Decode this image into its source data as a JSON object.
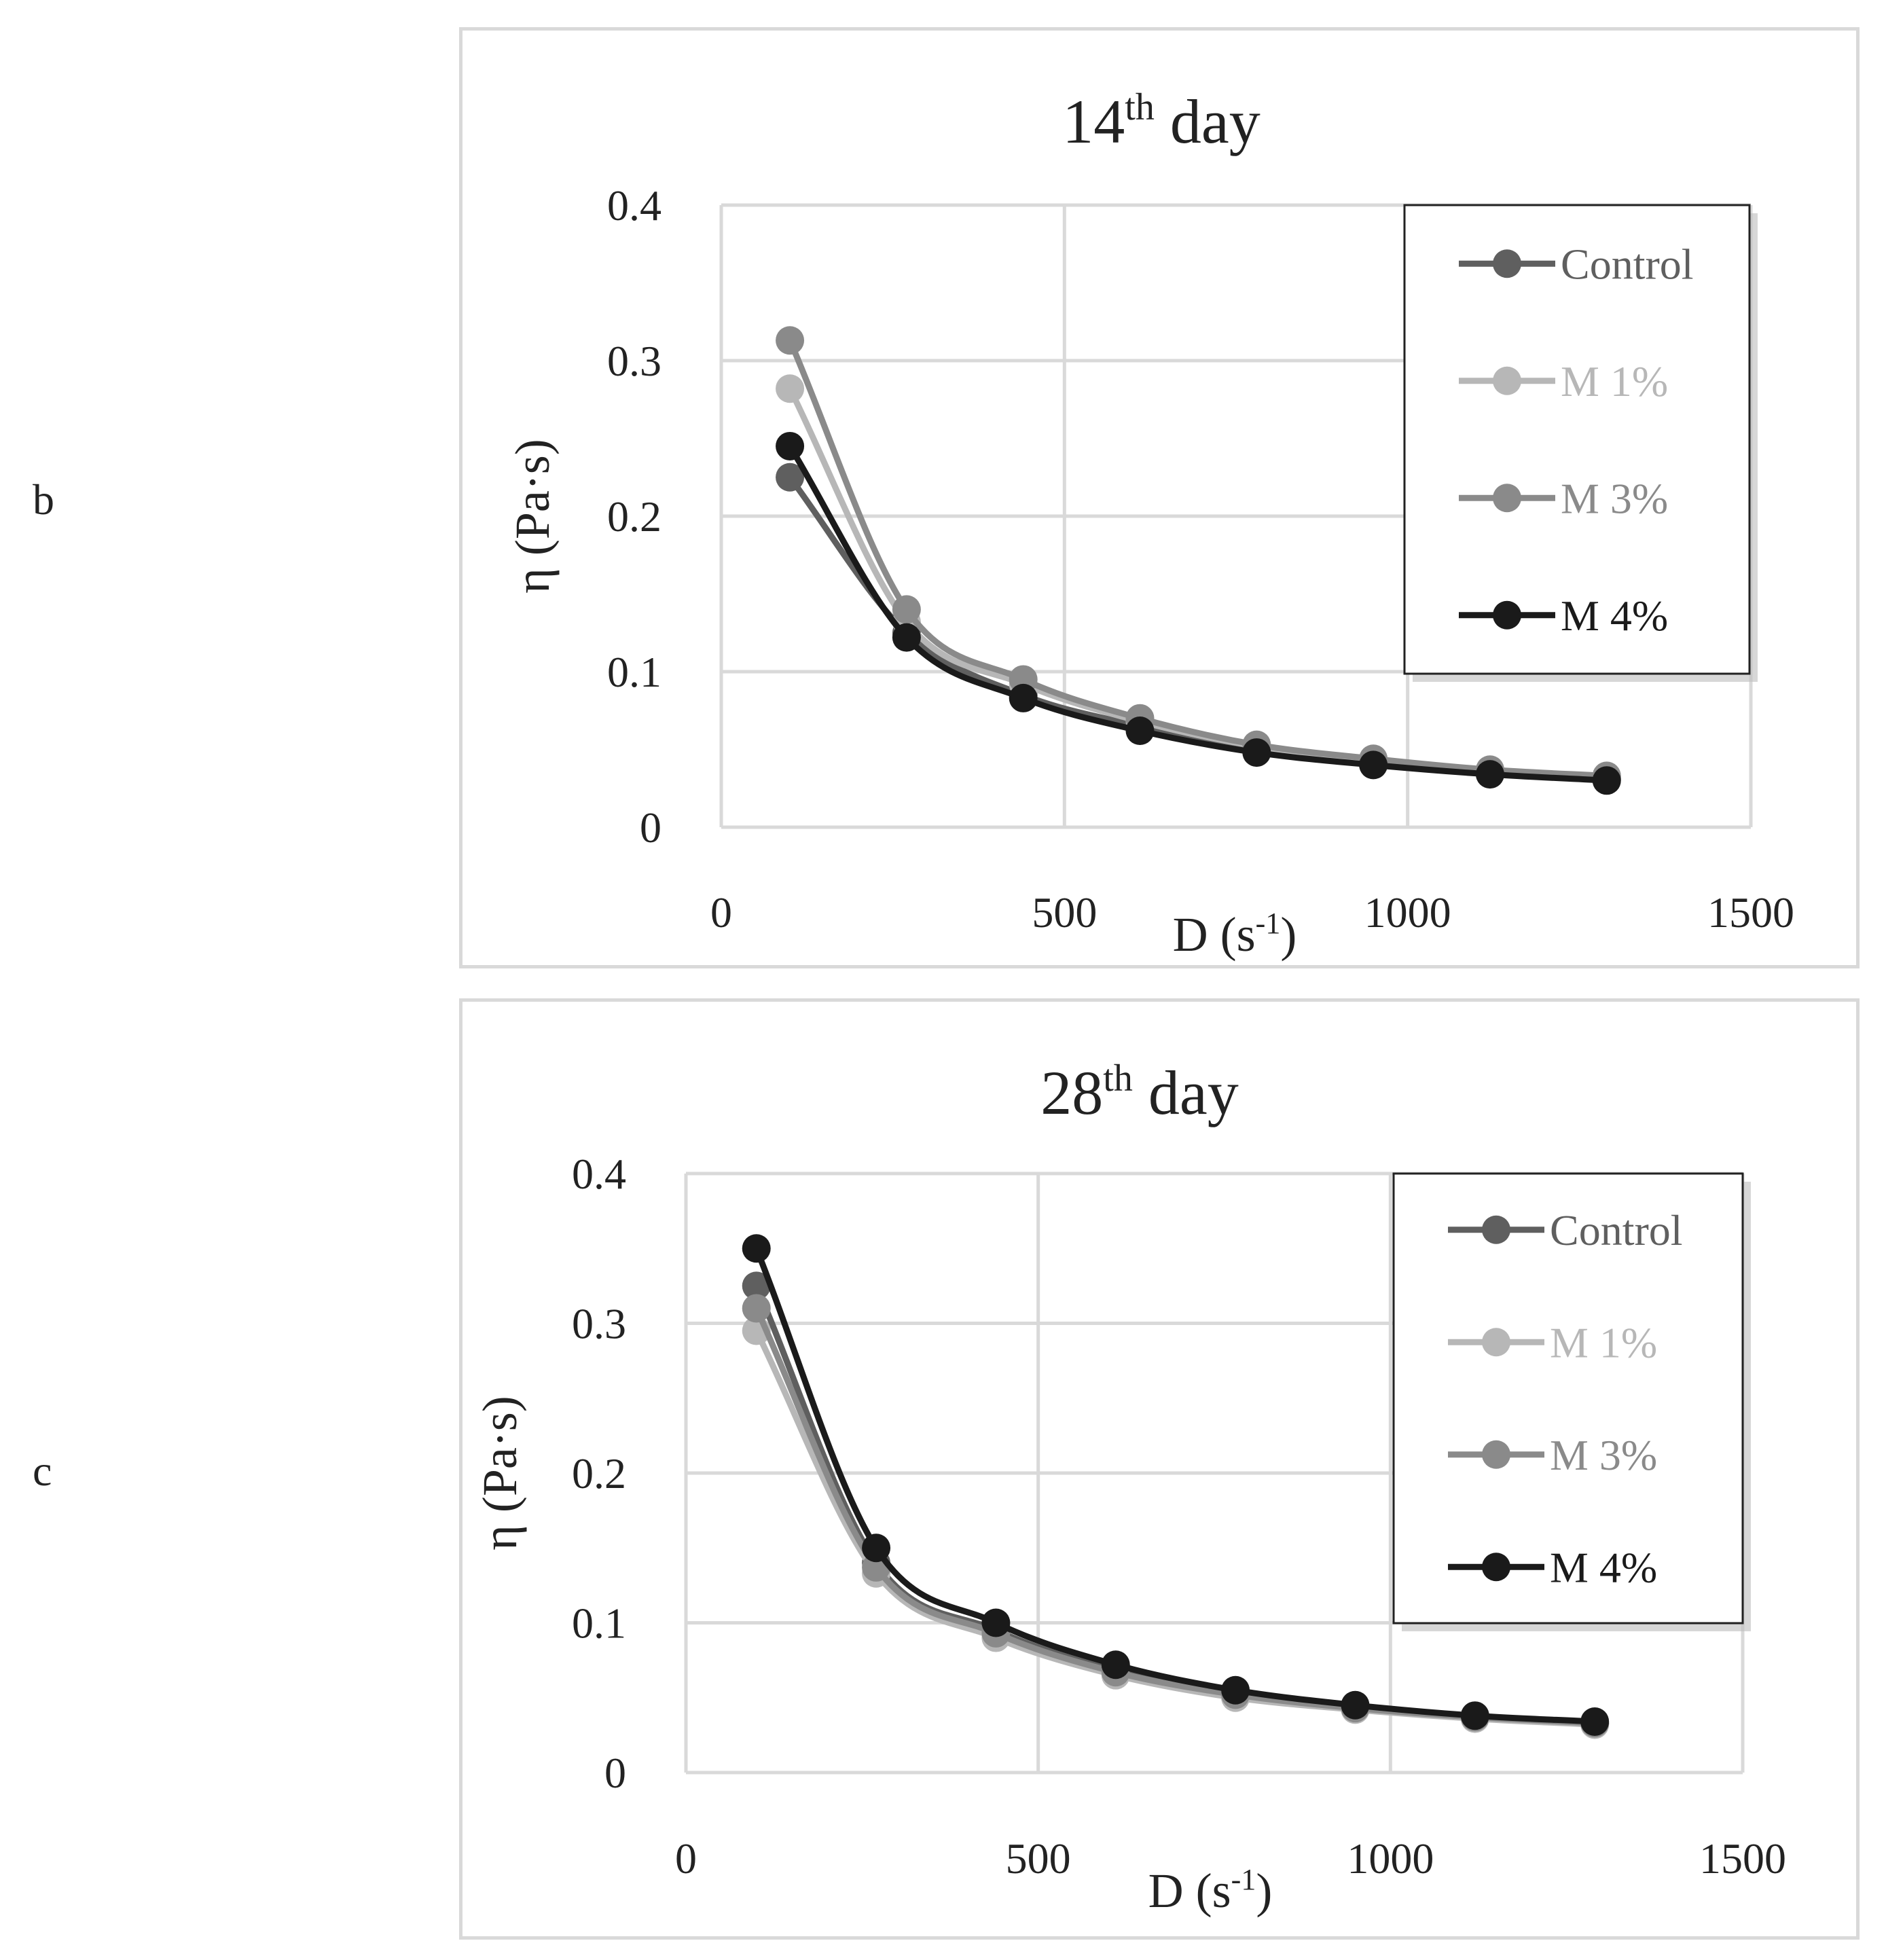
{
  "figure": {
    "panels": [
      {
        "letter": "b"
      },
      {
        "letter": "c"
      }
    ]
  },
  "styles": {
    "series_colors": {
      "Control": "#5f5f5f",
      "M 1%": "#b7b7b7",
      "M 3%": "#8a8a8a",
      "M 4%": "#1a1a1a"
    },
    "grid_color": "#d9d9d9",
    "legend_shadow": "#bdbdbd"
  },
  "chart_data": [
    {
      "type": "line",
      "title": "14th day",
      "title_main": "14",
      "title_sup": "th",
      "title_rest": " day",
      "xlabel": "D (s-1)",
      "xlabel_main": "D (s",
      "xlabel_sup": "-1",
      "xlabel_close": ")",
      "ylabel": "η (Pa·s)",
      "xlim": [
        0,
        1500
      ],
      "ylim": [
        0,
        0.4
      ],
      "xticks": [
        0,
        500,
        1000,
        1500
      ],
      "yticks": [
        0,
        0.1,
        0.2,
        0.3,
        0.4
      ],
      "grid": true,
      "legend_position": "top-right",
      "x": [
        100,
        270,
        440,
        610,
        780,
        950,
        1120,
        1290
      ],
      "series": [
        {
          "name": "Control",
          "values": [
            0.225,
            0.125,
            0.085,
            0.065,
            0.05,
            0.042,
            0.035,
            0.031
          ]
        },
        {
          "name": "M 1%",
          "values": [
            0.282,
            0.132,
            0.092,
            0.068,
            0.052,
            0.043,
            0.036,
            0.032
          ]
        },
        {
          "name": "M 3%",
          "values": [
            0.313,
            0.14,
            0.095,
            0.07,
            0.053,
            0.044,
            0.037,
            0.033
          ]
        },
        {
          "name": "M 4%",
          "values": [
            0.245,
            0.122,
            0.083,
            0.062,
            0.048,
            0.04,
            0.034,
            0.03
          ]
        }
      ]
    },
    {
      "type": "line",
      "title": "28th day",
      "title_main": "28",
      "title_sup": "th",
      "title_rest": " day",
      "xlabel": "D (s-1)",
      "xlabel_main": "D (s",
      "xlabel_sup": "-1",
      "xlabel_close": ")",
      "ylabel": "η (Pa·s)",
      "xlim": [
        0,
        1500
      ],
      "ylim": [
        0,
        0.4
      ],
      "xticks": [
        0,
        500,
        1000,
        1500
      ],
      "yticks": [
        0,
        0.1,
        0.2,
        0.3,
        0.4
      ],
      "grid": true,
      "legend_position": "top-right",
      "x": [
        100,
        270,
        440,
        610,
        780,
        950,
        1120,
        1290
      ],
      "series": [
        {
          "name": "Control",
          "values": [
            0.325,
            0.14,
            0.095,
            0.068,
            0.053,
            0.043,
            0.037,
            0.033
          ]
        },
        {
          "name": "M 1%",
          "values": [
            0.295,
            0.133,
            0.09,
            0.065,
            0.05,
            0.042,
            0.036,
            0.032
          ]
        },
        {
          "name": "M 3%",
          "values": [
            0.31,
            0.137,
            0.093,
            0.067,
            0.052,
            0.043,
            0.037,
            0.033
          ]
        },
        {
          "name": "M 4%",
          "values": [
            0.35,
            0.15,
            0.1,
            0.072,
            0.055,
            0.045,
            0.038,
            0.034
          ]
        }
      ]
    }
  ]
}
